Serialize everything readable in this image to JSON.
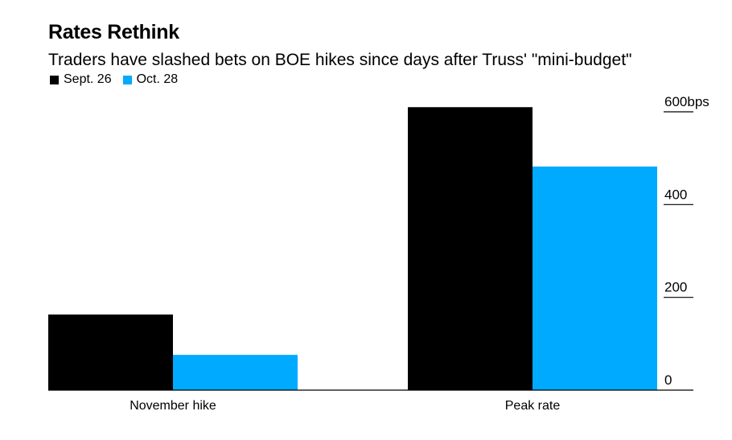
{
  "chart_data": {
    "type": "bar",
    "title": "Rates Rethink",
    "subtitle": "Traders have slashed bets on BOE hikes since days after Truss' \"mini-budget\"",
    "categories": [
      "November hike",
      "Peak rate"
    ],
    "series": [
      {
        "name": "Sept. 26",
        "color": "#000000",
        "values": [
          163,
          610
        ]
      },
      {
        "name": "Oct. 28",
        "color": "#00AAFF",
        "values": [
          76,
          482
        ]
      }
    ],
    "ylim": [
      0,
      600
    ],
    "yticks": [
      {
        "value": 0,
        "label": "0"
      },
      {
        "value": 200,
        "label": "200"
      },
      {
        "value": 400,
        "label": "400"
      },
      {
        "value": 600,
        "label": "600bps"
      }
    ],
    "xlabel": "",
    "ylabel": "",
    "legend_position": "top-left",
    "grid": false
  }
}
